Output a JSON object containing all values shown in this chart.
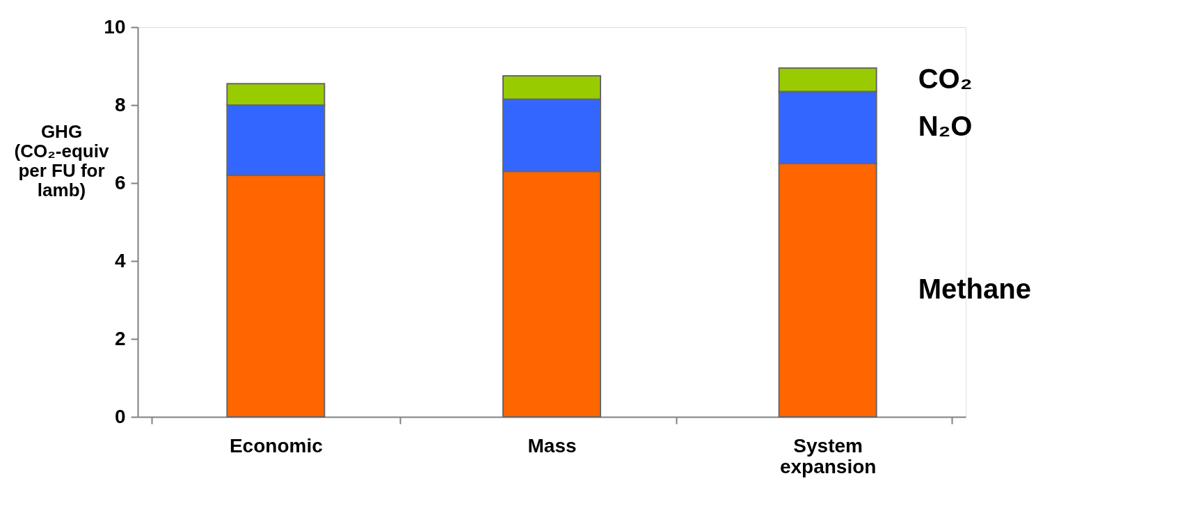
{
  "chart_data": {
    "type": "bar",
    "stacked": true,
    "ylabel": "GHG (CO₂-equiv per FU for lamb)",
    "categories": [
      "Economic",
      "Mass",
      "System expansion"
    ],
    "series": [
      {
        "name": "Methane",
        "color": "#ff6600",
        "values": [
          6.2,
          6.3,
          6.5
        ]
      },
      {
        "name": "N₂O",
        "color": "#3366ff",
        "values": [
          1.8,
          1.85,
          1.85
        ]
      },
      {
        "name": "CO₂",
        "color": "#99cc00",
        "values": [
          0.55,
          0.6,
          0.6
        ]
      }
    ],
    "ylim": [
      0,
      10
    ],
    "yticks": [
      0,
      2,
      4,
      6,
      8,
      10
    ],
    "grid": false,
    "legend": false
  }
}
